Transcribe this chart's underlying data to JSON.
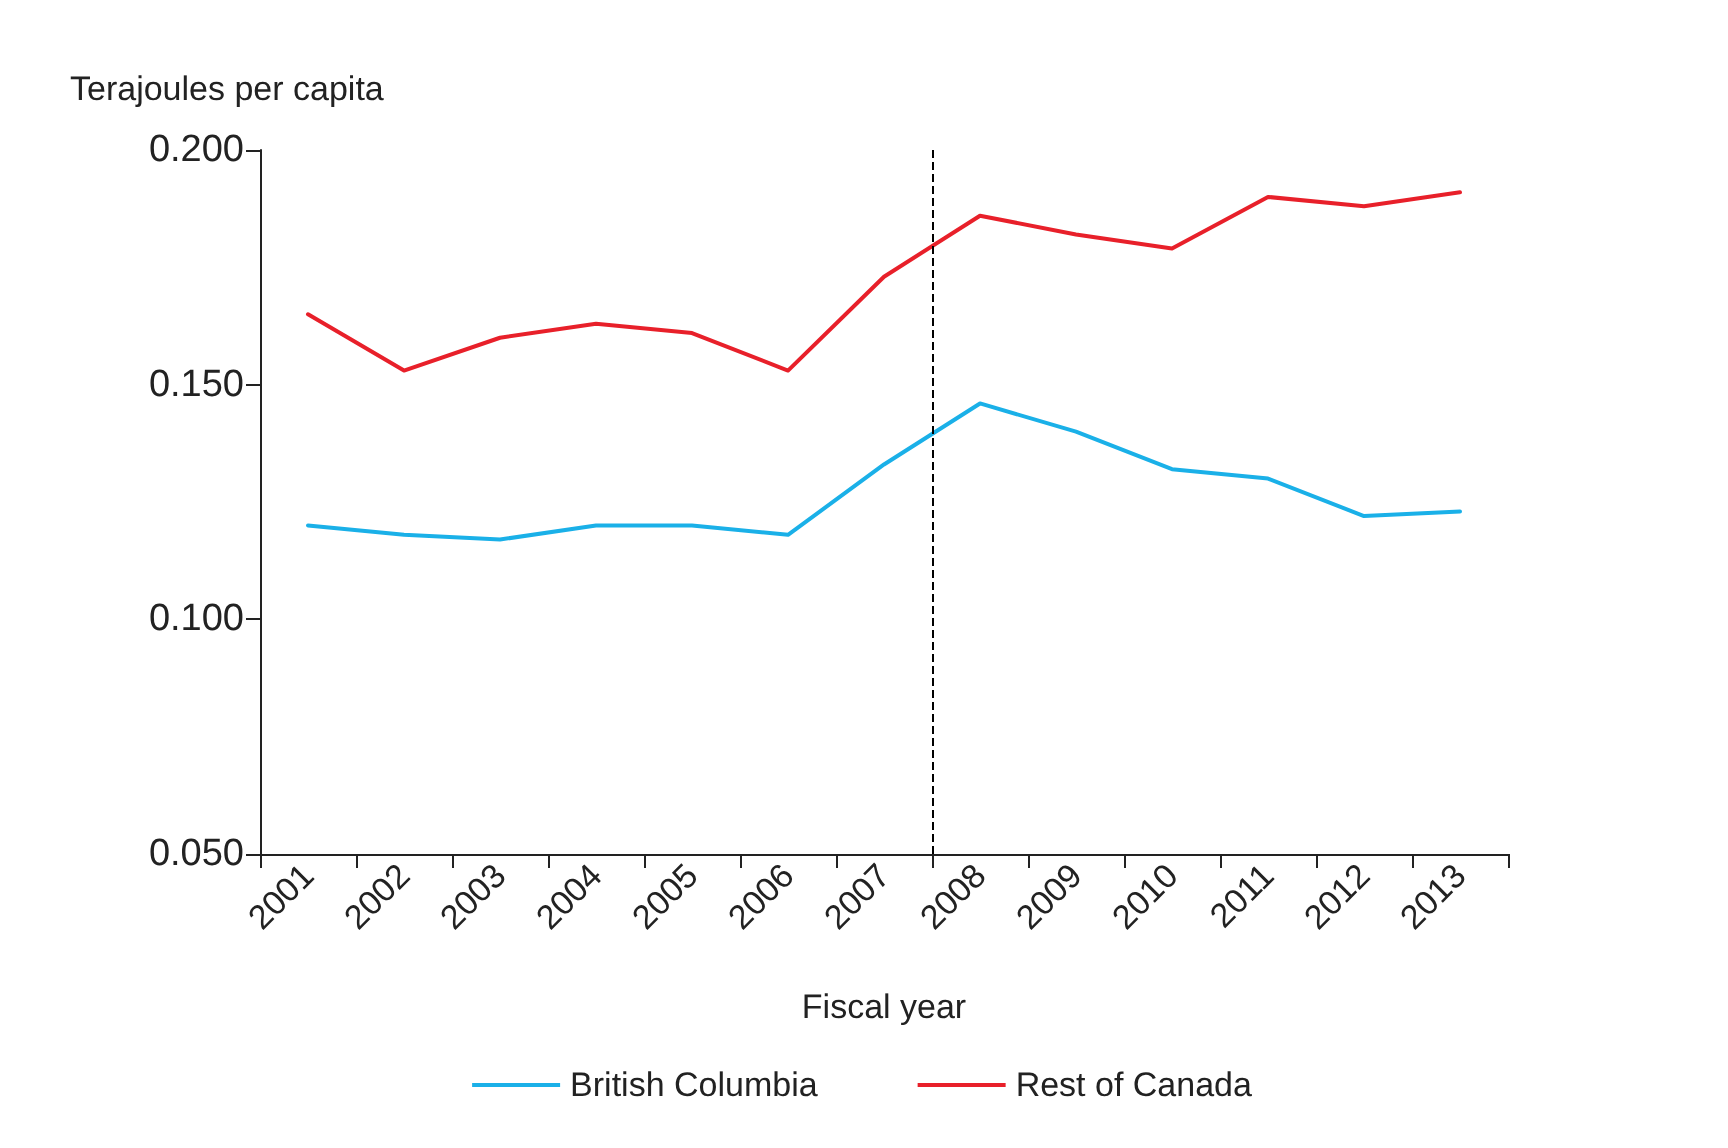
{
  "chart_data": {
    "type": "line",
    "xlabel": "Fiscal year",
    "ylabel": "Terajoules per capita",
    "x": [
      2001,
      2002,
      2003,
      2004,
      2005,
      2006,
      2007,
      2008,
      2009,
      2010,
      2011,
      2012,
      2013
    ],
    "xlim": [
      2000.5,
      2013.5
    ],
    "xticks": [
      2001,
      2002,
      2003,
      2004,
      2005,
      2006,
      2007,
      2008,
      2009,
      2010,
      2011,
      2012,
      2013
    ],
    "ylim": [
      0.05,
      0.2
    ],
    "yticks": [
      {
        "value": 0.05,
        "label": "0.050"
      },
      {
        "value": 0.1,
        "label": "0.100"
      },
      {
        "value": 0.15,
        "label": "0.150"
      },
      {
        "value": 0.2,
        "label": "0.200"
      }
    ],
    "series": [
      {
        "name": "British Columbia",
        "color": "#1ab0e8",
        "values": [
          0.12,
          0.118,
          0.117,
          0.12,
          0.12,
          0.118,
          0.133,
          0.146,
          0.14,
          0.132,
          0.13,
          0.122,
          0.123
        ]
      },
      {
        "name": "Rest of Canada",
        "color": "#e8202a",
        "values": [
          0.165,
          0.153,
          0.16,
          0.163,
          0.161,
          0.153,
          0.173,
          0.186,
          0.182,
          0.179,
          0.19,
          0.188,
          0.191
        ]
      }
    ],
    "ref_lines": [
      {
        "axis": "x",
        "value": 2007.5,
        "color": "#000000",
        "line_style": "dashed"
      }
    ],
    "grid": false,
    "legend": "bottom",
    "marker": "none",
    "line_style": "solid"
  }
}
